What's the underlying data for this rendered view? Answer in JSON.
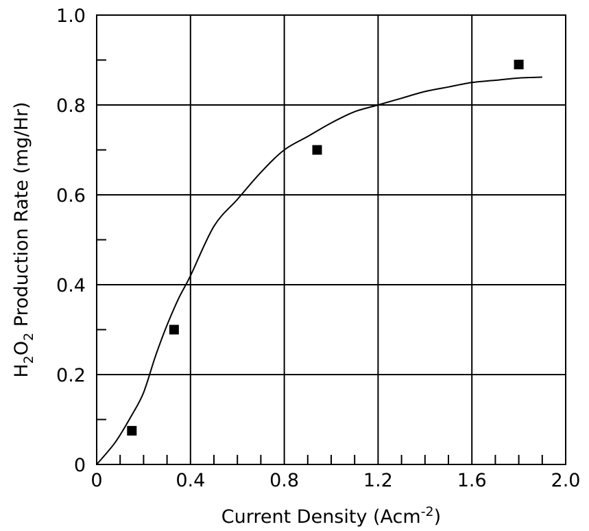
{
  "chart_data": {
    "type": "scatter",
    "xlabel": {
      "main": "Current Density (Acm",
      "sup": "-2",
      "close": ")"
    },
    "ylabel": {
      "h": "H",
      "sub1": "2",
      "o": "O",
      "sub2": "2",
      "rest": " Production Rate (mg/Hr)"
    },
    "xlim": [
      0,
      2.0
    ],
    "ylim": [
      0,
      1.0
    ],
    "xticks": [
      {
        "value": 0,
        "label": "0"
      },
      {
        "value": 0.4,
        "label": "0.4"
      },
      {
        "value": 0.8,
        "label": "0.8"
      },
      {
        "value": 1.2,
        "label": "1.2"
      },
      {
        "value": 1.6,
        "label": "1.6"
      },
      {
        "value": 2.0,
        "label": "2.0"
      }
    ],
    "yticks": [
      {
        "value": 0,
        "label": "0"
      },
      {
        "value": 0.2,
        "label": "0.2"
      },
      {
        "value": 0.4,
        "label": "0.4"
      },
      {
        "value": 0.6,
        "label": "0.6"
      },
      {
        "value": 0.8,
        "label": "0.8"
      },
      {
        "value": 1.0,
        "label": "1.0"
      }
    ],
    "x_minor_step": 0.1,
    "y_minor_step": 0.1,
    "grid": true,
    "series": [
      {
        "kind": "markers",
        "marker": "filled-square",
        "color": "#000000",
        "points": [
          {
            "x": 0.15,
            "y": 0.075
          },
          {
            "x": 0.33,
            "y": 0.3
          },
          {
            "x": 0.94,
            "y": 0.7
          },
          {
            "x": 1.8,
            "y": 0.89
          }
        ]
      },
      {
        "kind": "curve",
        "color": "#000000",
        "points": [
          {
            "x": 0.0,
            "y": 0.0
          },
          {
            "x": 0.08,
            "y": 0.05
          },
          {
            "x": 0.15,
            "y": 0.11
          },
          {
            "x": 0.2,
            "y": 0.16
          },
          {
            "x": 0.25,
            "y": 0.24
          },
          {
            "x": 0.3,
            "y": 0.31
          },
          {
            "x": 0.35,
            "y": 0.37
          },
          {
            "x": 0.4,
            "y": 0.42
          },
          {
            "x": 0.5,
            "y": 0.53
          },
          {
            "x": 0.6,
            "y": 0.59
          },
          {
            "x": 0.7,
            "y": 0.65
          },
          {
            "x": 0.8,
            "y": 0.7
          },
          {
            "x": 0.9,
            "y": 0.73
          },
          {
            "x": 1.0,
            "y": 0.76
          },
          {
            "x": 1.1,
            "y": 0.785
          },
          {
            "x": 1.2,
            "y": 0.8
          },
          {
            "x": 1.3,
            "y": 0.815
          },
          {
            "x": 1.4,
            "y": 0.83
          },
          {
            "x": 1.5,
            "y": 0.84
          },
          {
            "x": 1.6,
            "y": 0.85
          },
          {
            "x": 1.7,
            "y": 0.855
          },
          {
            "x": 1.8,
            "y": 0.86
          },
          {
            "x": 1.9,
            "y": 0.862
          }
        ]
      }
    ]
  }
}
